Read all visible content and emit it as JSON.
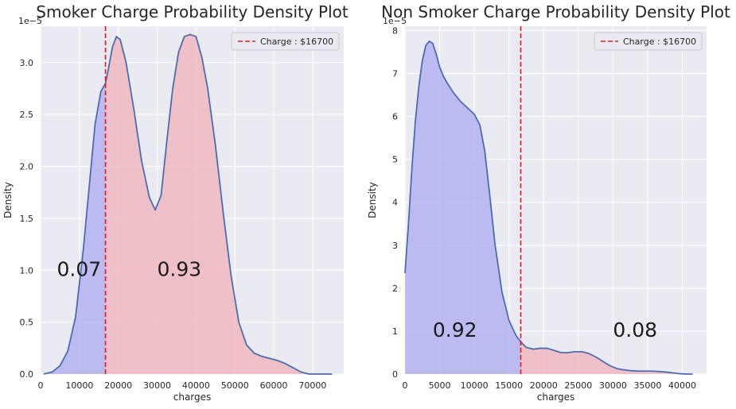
{
  "chart_data": [
    {
      "type": "area",
      "title": "Smoker Charge Probability Density Plot",
      "xlabel": "charges",
      "ylabel": "Density",
      "scale_label": "1e−5",
      "xlim": [
        0,
        78000
      ],
      "ylim": [
        0,
        3.35
      ],
      "x_ticks": [
        0,
        10000,
        20000,
        30000,
        40000,
        50000,
        60000,
        70000
      ],
      "y_ticks": [
        0.0,
        0.5,
        1.0,
        1.5,
        2.0,
        2.5,
        3.0
      ],
      "y_tick_labels": [
        "0.0",
        "0.5",
        "1.0",
        "1.5",
        "2.0",
        "2.5",
        "3.0"
      ],
      "grid": true,
      "legend_position": "top-right",
      "threshold": {
        "x": 16700,
        "label": "Charge : $16700",
        "color": "#e31a1c"
      },
      "fill_below_color": "#b3b3f2",
      "fill_above_color": "#f0b8bf",
      "line_color": "#4c6cb0",
      "density": {
        "x": [
          800,
          3000,
          5000,
          7000,
          9000,
          11000,
          12500,
          14000,
          15500,
          16700,
          17500,
          18500,
          19500,
          20500,
          22000,
          24000,
          26000,
          28000,
          29500,
          31000,
          32500,
          34000,
          35500,
          37000,
          38500,
          40000,
          41500,
          43000,
          45000,
          47000,
          49000,
          51000,
          53000,
          55000,
          57000,
          59000,
          61000,
          63000,
          65000,
          67000,
          69000,
          71000,
          73000,
          75000
        ],
        "y": [
          0.0,
          0.02,
          0.08,
          0.22,
          0.55,
          1.2,
          1.8,
          2.4,
          2.72,
          2.8,
          2.95,
          3.15,
          3.25,
          3.22,
          3.0,
          2.55,
          2.05,
          1.7,
          1.58,
          1.72,
          2.25,
          2.75,
          3.1,
          3.25,
          3.27,
          3.25,
          3.05,
          2.75,
          2.2,
          1.55,
          0.95,
          0.5,
          0.28,
          0.2,
          0.17,
          0.15,
          0.13,
          0.1,
          0.06,
          0.02,
          0.0,
          0.0,
          0.0,
          0.0
        ]
      },
      "annotations": [
        {
          "text": "0.07",
          "x": 4200,
          "y": 1.0
        },
        {
          "text": "0.93",
          "x": 30000,
          "y": 1.0
        }
      ]
    },
    {
      "type": "area",
      "title": "Non Smoker Charge Probability Density Plot",
      "xlabel": "charges",
      "ylabel": "Density",
      "scale_label": "1e−5",
      "xlim": [
        0,
        43500
      ],
      "ylim": [
        0,
        8.1
      ],
      "x_ticks": [
        0,
        5000,
        10000,
        15000,
        20000,
        25000,
        30000,
        35000,
        40000
      ],
      "y_ticks": [
        0,
        1,
        2,
        3,
        4,
        5,
        6,
        7,
        8
      ],
      "y_tick_labels": [
        "0",
        "1",
        "2",
        "3",
        "4",
        "5",
        "6",
        "7",
        "8"
      ],
      "grid": true,
      "legend_position": "top-right",
      "threshold": {
        "x": 16700,
        "label": "Charge : $16700",
        "color": "#e31a1c"
      },
      "fill_below_color": "#b3b3f2",
      "fill_above_color": "#f0b8bf",
      "line_color": "#4c6cb0",
      "density": {
        "x": [
          0,
          500,
          1000,
          1500,
          2000,
          2500,
          3000,
          3500,
          4000,
          4500,
          5000,
          5500,
          6000,
          7000,
          8000,
          9000,
          10000,
          10800,
          11500,
          12200,
          13000,
          14000,
          15000,
          16000,
          16700,
          17500,
          18500,
          19500,
          20500,
          21500,
          22500,
          23500,
          24500,
          25500,
          26500,
          27500,
          28500,
          29500,
          30500,
          31500,
          32500,
          33500,
          34500,
          35500,
          36500,
          37500,
          38500,
          39500,
          40500,
          41500
        ],
        "y": [
          2.35,
          3.5,
          4.8,
          5.9,
          6.7,
          7.3,
          7.65,
          7.75,
          7.7,
          7.45,
          7.15,
          6.95,
          6.8,
          6.55,
          6.35,
          6.2,
          6.05,
          5.8,
          5.2,
          4.2,
          3.0,
          1.9,
          1.25,
          0.9,
          0.75,
          0.62,
          0.58,
          0.6,
          0.6,
          0.55,
          0.5,
          0.5,
          0.52,
          0.52,
          0.48,
          0.4,
          0.3,
          0.2,
          0.13,
          0.1,
          0.08,
          0.07,
          0.07,
          0.07,
          0.06,
          0.05,
          0.03,
          0.01,
          0.0,
          0.0
        ]
      },
      "annotations": [
        {
          "text": "0.92",
          "x": 4000,
          "y": 1.0
        },
        {
          "text": "0.08",
          "x": 30000,
          "y": 1.0
        }
      ]
    }
  ]
}
